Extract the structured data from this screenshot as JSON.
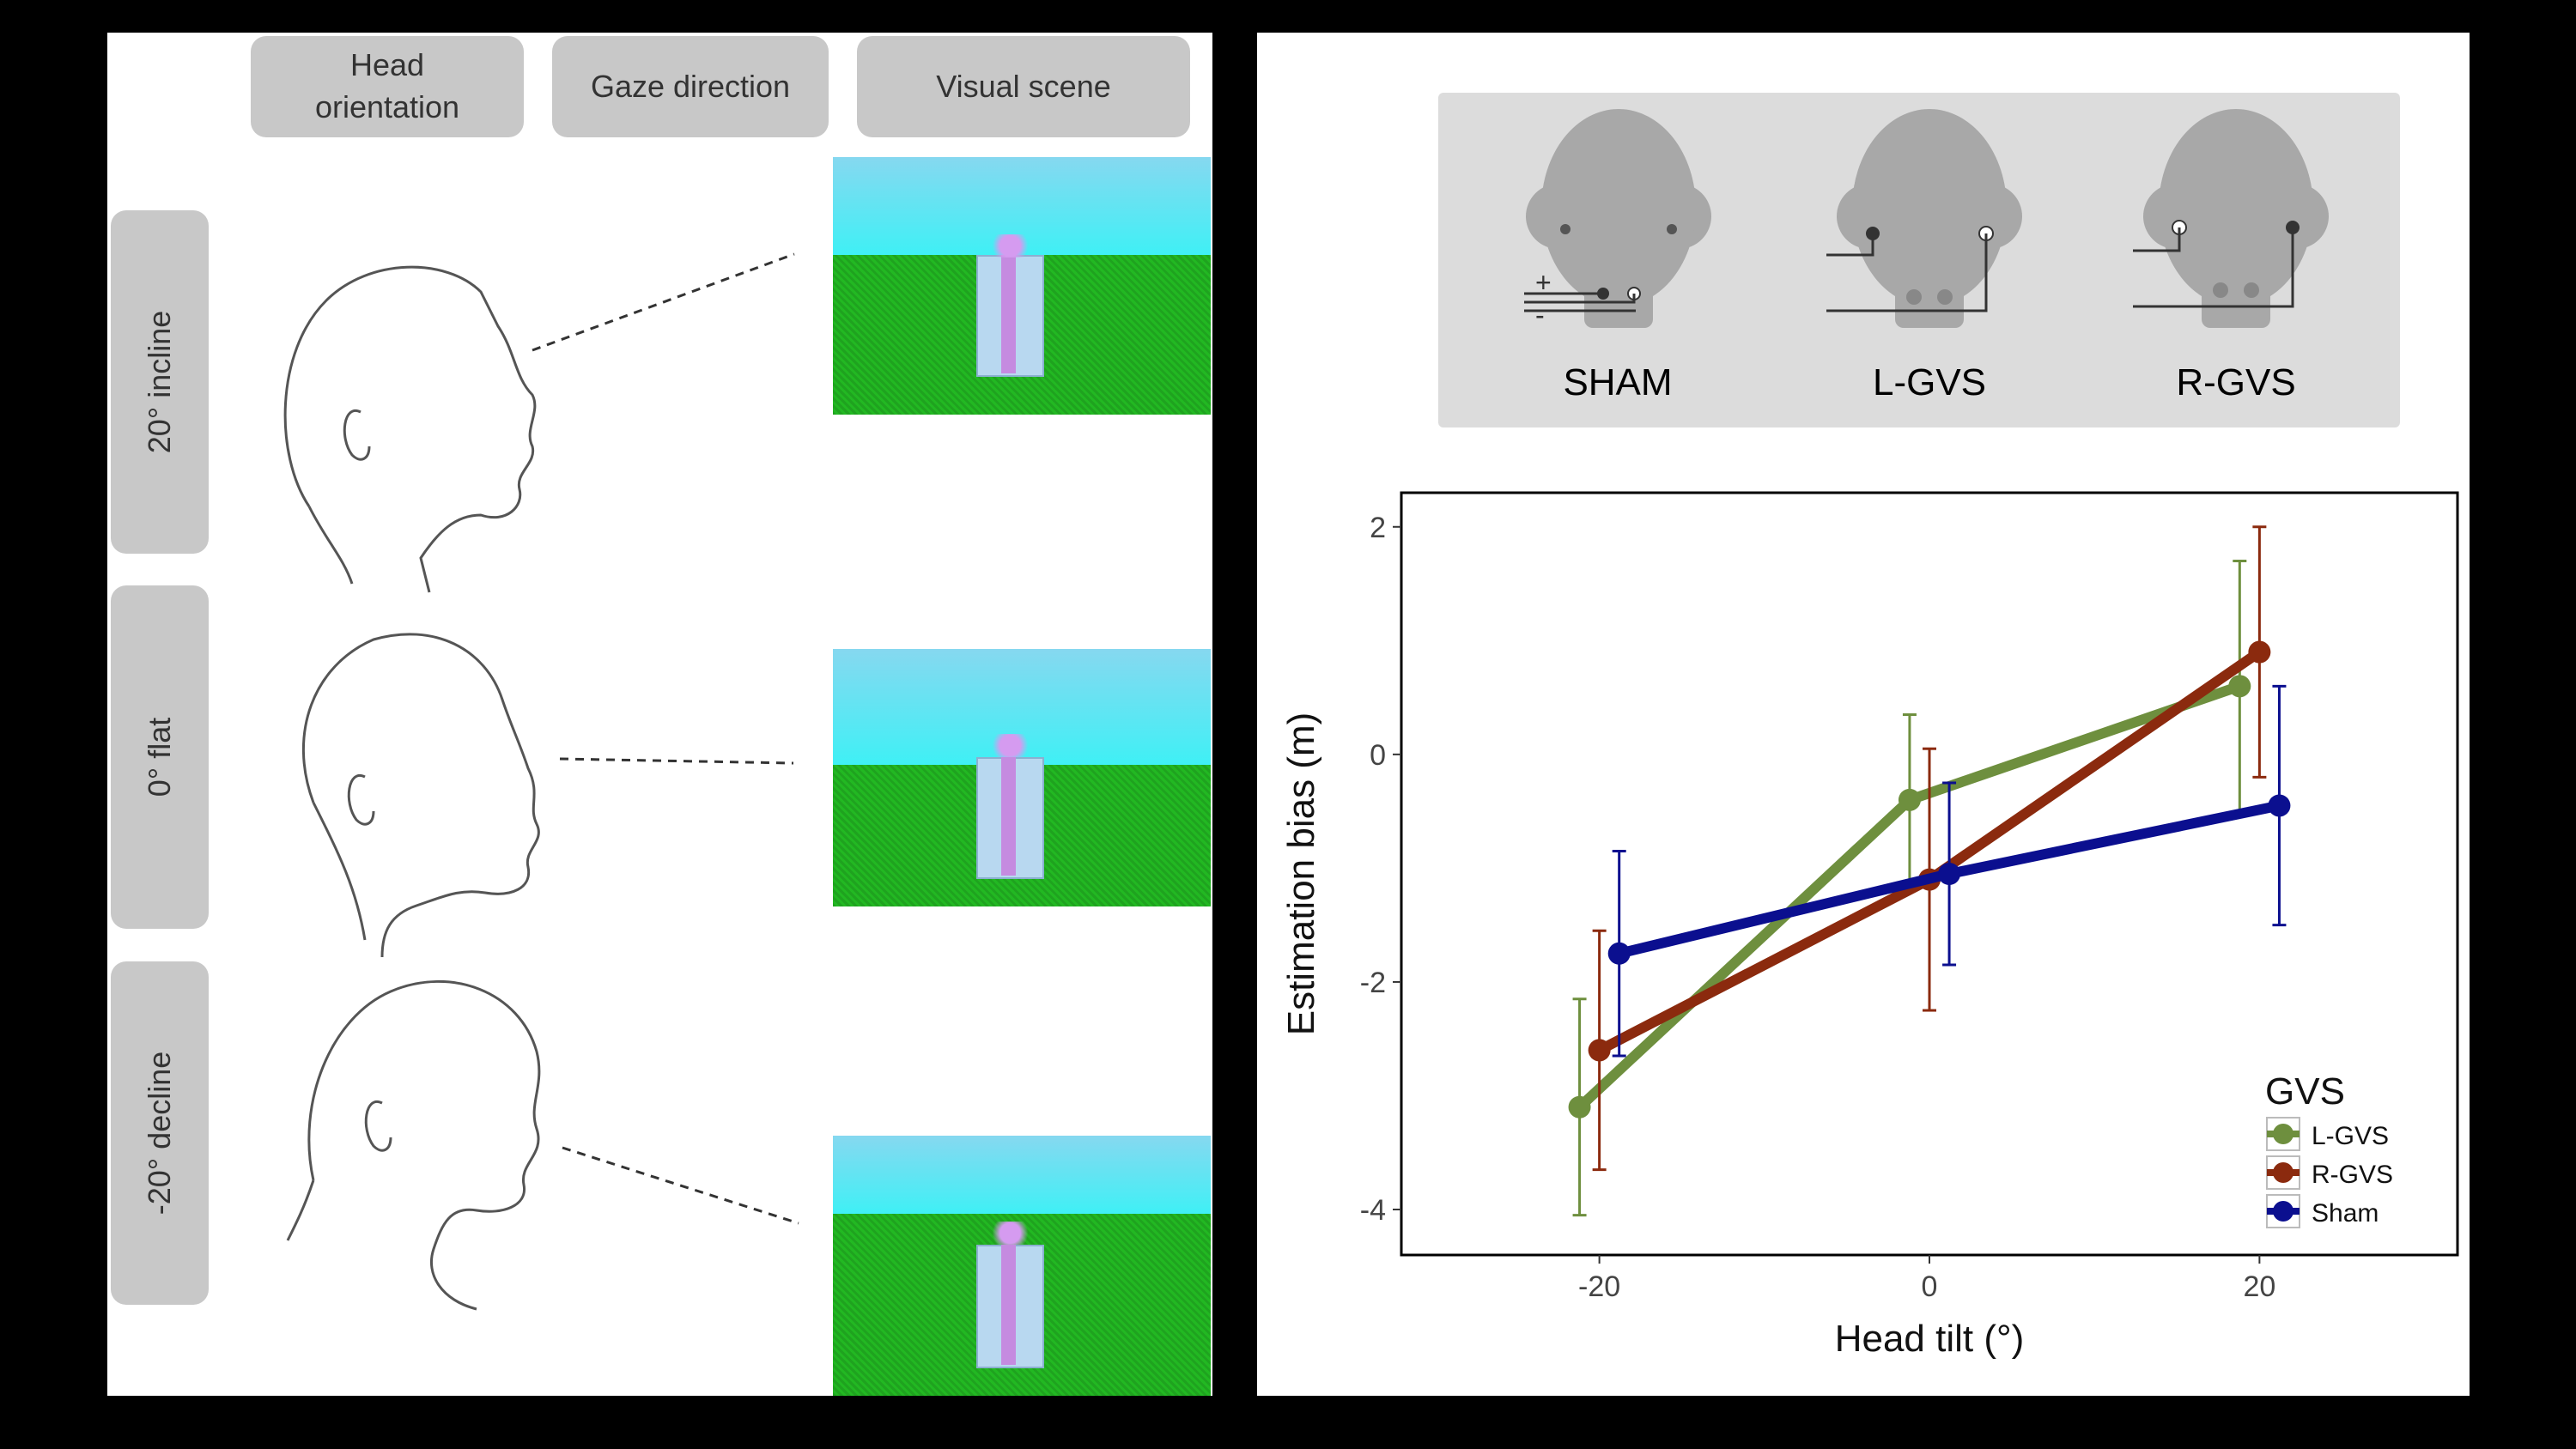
{
  "left": {
    "headers": [
      "Head\norientation",
      "Gaze direction",
      "Visual scene"
    ],
    "rows": [
      "20° incline",
      "0° flat",
      "-20° decline"
    ]
  },
  "gvs_diagram": {
    "labels": [
      "SHAM",
      "L-GVS",
      "R-GVS"
    ],
    "signs": {
      "plus": "+",
      "minus": "-"
    }
  },
  "chart_data": {
    "type": "line",
    "xlabel": "Head tilt (°)",
    "ylabel": "Estimation bias (m)",
    "x": [
      -20,
      0,
      20
    ],
    "xticks": [
      "-20",
      "0",
      "20"
    ],
    "yticks": [
      "2",
      "0",
      "-2",
      "-4"
    ],
    "xlim": [
      -32,
      32
    ],
    "ylim": [
      -4.4,
      2.3
    ],
    "legend_title": "GVS",
    "legend_position": "bottom-right",
    "grid": false,
    "series": [
      {
        "name": "L-GVS",
        "color": "#6e8f3e",
        "values": [
          -3.1,
          -0.4,
          0.6
        ],
        "err": [
          0.95,
          0.75,
          1.1
        ]
      },
      {
        "name": "R-GVS",
        "color": "#8b2a0e",
        "values": [
          -2.6,
          -1.1,
          0.9
        ],
        "err": [
          1.05,
          1.15,
          1.1
        ]
      },
      {
        "name": "Sham",
        "color": "#0b0f8f",
        "values": [
          -1.75,
          -1.05,
          -0.45
        ],
        "err": [
          0.9,
          0.8,
          1.05
        ]
      }
    ]
  }
}
